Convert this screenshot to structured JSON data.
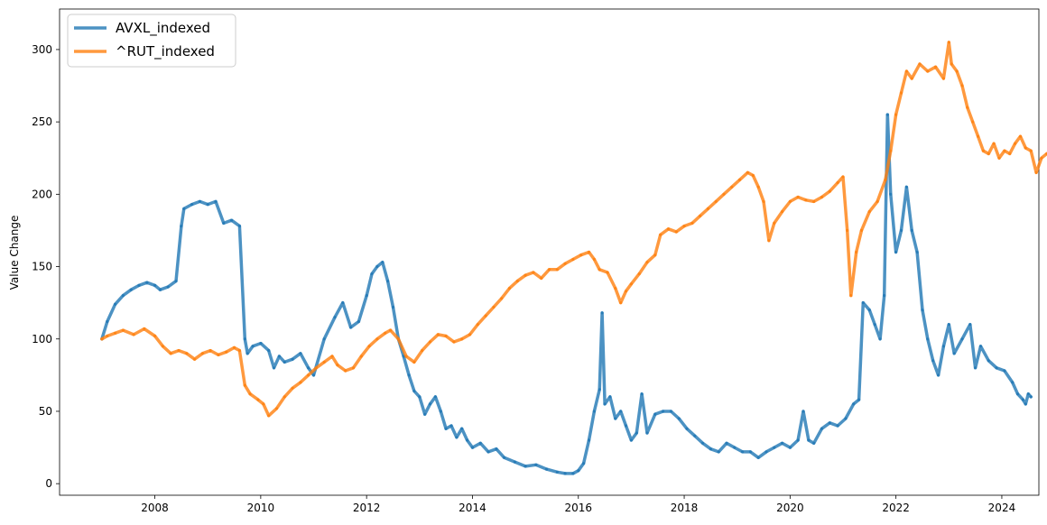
{
  "chart_data": {
    "type": "line",
    "title": "",
    "xlabel": "",
    "ylabel": "Value Change",
    "xlim": [
      2006.2,
      2024.7
    ],
    "ylim": [
      -8,
      328
    ],
    "xticks": [
      2008,
      2010,
      2012,
      2014,
      2016,
      2018,
      2020,
      2022,
      2024
    ],
    "yticks": [
      0,
      50,
      100,
      150,
      200,
      250,
      300
    ],
    "grid": false,
    "legend_position": "top-left",
    "series": [
      {
        "name": "AVXL_indexed",
        "color": "#1f77b4",
        "points": [
          [
            2007.0,
            100
          ],
          [
            2007.1,
            112
          ],
          [
            2007.25,
            124
          ],
          [
            2007.4,
            130
          ],
          [
            2007.55,
            134
          ],
          [
            2007.7,
            137
          ],
          [
            2007.85,
            139
          ],
          [
            2008.0,
            137
          ],
          [
            2008.1,
            134
          ],
          [
            2008.25,
            136
          ],
          [
            2008.4,
            140
          ],
          [
            2008.5,
            178
          ],
          [
            2008.55,
            190
          ],
          [
            2008.7,
            193
          ],
          [
            2008.85,
            195
          ],
          [
            2009.0,
            193
          ],
          [
            2009.15,
            195
          ],
          [
            2009.3,
            180
          ],
          [
            2009.45,
            182
          ],
          [
            2009.6,
            178
          ],
          [
            2009.7,
            100
          ],
          [
            2009.75,
            90
          ],
          [
            2009.85,
            95
          ],
          [
            2010.0,
            97
          ],
          [
            2010.15,
            92
          ],
          [
            2010.25,
            80
          ],
          [
            2010.35,
            88
          ],
          [
            2010.45,
            84
          ],
          [
            2010.6,
            86
          ],
          [
            2010.75,
            90
          ],
          [
            2010.9,
            80
          ],
          [
            2011.0,
            75
          ],
          [
            2011.2,
            100
          ],
          [
            2011.4,
            115
          ],
          [
            2011.55,
            125
          ],
          [
            2011.7,
            108
          ],
          [
            2011.85,
            112
          ],
          [
            2012.0,
            130
          ],
          [
            2012.1,
            145
          ],
          [
            2012.2,
            150
          ],
          [
            2012.3,
            153
          ],
          [
            2012.4,
            140
          ],
          [
            2012.5,
            122
          ],
          [
            2012.6,
            100
          ],
          [
            2012.7,
            88
          ],
          [
            2012.8,
            75
          ],
          [
            2012.9,
            64
          ],
          [
            2013.0,
            60
          ],
          [
            2013.1,
            48
          ],
          [
            2013.2,
            55
          ],
          [
            2013.3,
            60
          ],
          [
            2013.4,
            50
          ],
          [
            2013.5,
            38
          ],
          [
            2013.6,
            40
          ],
          [
            2013.7,
            32
          ],
          [
            2013.8,
            38
          ],
          [
            2013.9,
            30
          ],
          [
            2014.0,
            25
          ],
          [
            2014.15,
            28
          ],
          [
            2014.3,
            22
          ],
          [
            2014.45,
            24
          ],
          [
            2014.6,
            18
          ],
          [
            2014.8,
            15
          ],
          [
            2015.0,
            12
          ],
          [
            2015.2,
            13
          ],
          [
            2015.4,
            10
          ],
          [
            2015.6,
            8
          ],
          [
            2015.75,
            7
          ],
          [
            2015.9,
            7
          ],
          [
            2016.0,
            9
          ],
          [
            2016.1,
            14
          ],
          [
            2016.2,
            30
          ],
          [
            2016.3,
            50
          ],
          [
            2016.4,
            65
          ],
          [
            2016.45,
            118
          ],
          [
            2016.5,
            55
          ],
          [
            2016.6,
            60
          ],
          [
            2016.7,
            45
          ],
          [
            2016.8,
            50
          ],
          [
            2016.9,
            40
          ],
          [
            2017.0,
            30
          ],
          [
            2017.1,
            35
          ],
          [
            2017.2,
            62
          ],
          [
            2017.3,
            35
          ],
          [
            2017.45,
            48
          ],
          [
            2017.6,
            50
          ],
          [
            2017.75,
            50
          ],
          [
            2017.9,
            45
          ],
          [
            2018.05,
            38
          ],
          [
            2018.2,
            33
          ],
          [
            2018.35,
            28
          ],
          [
            2018.5,
            24
          ],
          [
            2018.65,
            22
          ],
          [
            2018.8,
            28
          ],
          [
            2018.95,
            25
          ],
          [
            2019.1,
            22
          ],
          [
            2019.25,
            22
          ],
          [
            2019.4,
            18
          ],
          [
            2019.55,
            22
          ],
          [
            2019.7,
            25
          ],
          [
            2019.85,
            28
          ],
          [
            2020.0,
            25
          ],
          [
            2020.15,
            30
          ],
          [
            2020.25,
            50
          ],
          [
            2020.35,
            30
          ],
          [
            2020.45,
            28
          ],
          [
            2020.6,
            38
          ],
          [
            2020.75,
            42
          ],
          [
            2020.9,
            40
          ],
          [
            2021.05,
            45
          ],
          [
            2021.2,
            55
          ],
          [
            2021.3,
            58
          ],
          [
            2021.38,
            125
          ],
          [
            2021.5,
            120
          ],
          [
            2021.6,
            110
          ],
          [
            2021.7,
            100
          ],
          [
            2021.78,
            130
          ],
          [
            2021.84,
            255
          ],
          [
            2021.9,
            200
          ],
          [
            2022.0,
            160
          ],
          [
            2022.1,
            175
          ],
          [
            2022.2,
            205
          ],
          [
            2022.3,
            175
          ],
          [
            2022.4,
            160
          ],
          [
            2022.5,
            120
          ],
          [
            2022.6,
            100
          ],
          [
            2022.7,
            85
          ],
          [
            2022.8,
            75
          ],
          [
            2022.9,
            95
          ],
          [
            2023.0,
            110
          ],
          [
            2023.1,
            90
          ],
          [
            2023.25,
            100
          ],
          [
            2023.4,
            110
          ],
          [
            2023.5,
            80
          ],
          [
            2023.6,
            95
          ],
          [
            2023.75,
            85
          ],
          [
            2023.9,
            80
          ],
          [
            2024.05,
            78
          ],
          [
            2024.2,
            70
          ],
          [
            2024.3,
            62
          ],
          [
            2024.4,
            58
          ],
          [
            2024.45,
            55
          ],
          [
            2024.5,
            62
          ],
          [
            2024.55,
            60
          ]
        ]
      },
      {
        "name": "^RUT_indexed",
        "color": "#ff7f0e",
        "points": [
          [
            2007.0,
            100
          ],
          [
            2007.1,
            102
          ],
          [
            2007.25,
            104
          ],
          [
            2007.4,
            106
          ],
          [
            2007.6,
            103
          ],
          [
            2007.8,
            107
          ],
          [
            2008.0,
            102
          ],
          [
            2008.15,
            95
          ],
          [
            2008.3,
            90
          ],
          [
            2008.45,
            92
          ],
          [
            2008.6,
            90
          ],
          [
            2008.75,
            86
          ],
          [
            2008.9,
            90
          ],
          [
            2009.05,
            92
          ],
          [
            2009.2,
            89
          ],
          [
            2009.35,
            91
          ],
          [
            2009.5,
            94
          ],
          [
            2009.6,
            92
          ],
          [
            2009.7,
            68
          ],
          [
            2009.8,
            62
          ],
          [
            2009.95,
            58
          ],
          [
            2010.05,
            55
          ],
          [
            2010.15,
            47
          ],
          [
            2010.3,
            52
          ],
          [
            2010.45,
            60
          ],
          [
            2010.6,
            66
          ],
          [
            2010.75,
            70
          ],
          [
            2010.9,
            75
          ],
          [
            2011.05,
            80
          ],
          [
            2011.2,
            84
          ],
          [
            2011.35,
            88
          ],
          [
            2011.45,
            82
          ],
          [
            2011.6,
            78
          ],
          [
            2011.75,
            80
          ],
          [
            2011.9,
            88
          ],
          [
            2012.05,
            95
          ],
          [
            2012.2,
            100
          ],
          [
            2012.35,
            104
          ],
          [
            2012.45,
            106
          ],
          [
            2012.6,
            100
          ],
          [
            2012.75,
            88
          ],
          [
            2012.9,
            84
          ],
          [
            2013.05,
            92
          ],
          [
            2013.2,
            98
          ],
          [
            2013.35,
            103
          ],
          [
            2013.5,
            102
          ],
          [
            2013.65,
            98
          ],
          [
            2013.8,
            100
          ],
          [
            2013.95,
            103
          ],
          [
            2014.1,
            110
          ],
          [
            2014.25,
            116
          ],
          [
            2014.4,
            122
          ],
          [
            2014.55,
            128
          ],
          [
            2014.7,
            135
          ],
          [
            2014.85,
            140
          ],
          [
            2015.0,
            144
          ],
          [
            2015.15,
            146
          ],
          [
            2015.3,
            142
          ],
          [
            2015.45,
            148
          ],
          [
            2015.6,
            148
          ],
          [
            2015.75,
            152
          ],
          [
            2015.9,
            155
          ],
          [
            2016.05,
            158
          ],
          [
            2016.2,
            160
          ],
          [
            2016.3,
            155
          ],
          [
            2016.4,
            148
          ],
          [
            2016.55,
            146
          ],
          [
            2016.7,
            135
          ],
          [
            2016.8,
            125
          ],
          [
            2016.9,
            133
          ],
          [
            2017.0,
            138
          ],
          [
            2017.15,
            145
          ],
          [
            2017.3,
            153
          ],
          [
            2017.45,
            158
          ],
          [
            2017.55,
            172
          ],
          [
            2017.7,
            176
          ],
          [
            2017.85,
            174
          ],
          [
            2018.0,
            178
          ],
          [
            2018.15,
            180
          ],
          [
            2018.3,
            185
          ],
          [
            2018.45,
            190
          ],
          [
            2018.6,
            195
          ],
          [
            2018.75,
            200
          ],
          [
            2018.9,
            205
          ],
          [
            2019.05,
            210
          ],
          [
            2019.2,
            215
          ],
          [
            2019.3,
            213
          ],
          [
            2019.4,
            205
          ],
          [
            2019.5,
            195
          ],
          [
            2019.6,
            168
          ],
          [
            2019.7,
            180
          ],
          [
            2019.85,
            188
          ],
          [
            2020.0,
            195
          ],
          [
            2020.15,
            198
          ],
          [
            2020.3,
            196
          ],
          [
            2020.45,
            195
          ],
          [
            2020.6,
            198
          ],
          [
            2020.75,
            202
          ],
          [
            2020.9,
            208
          ],
          [
            2021.0,
            212
          ],
          [
            2021.08,
            175
          ],
          [
            2021.15,
            130
          ],
          [
            2021.25,
            160
          ],
          [
            2021.35,
            175
          ],
          [
            2021.5,
            188
          ],
          [
            2021.65,
            195
          ],
          [
            2021.8,
            210
          ],
          [
            2021.9,
            230
          ],
          [
            2022.0,
            255
          ],
          [
            2022.1,
            270
          ],
          [
            2022.2,
            285
          ],
          [
            2022.3,
            280
          ],
          [
            2022.45,
            290
          ],
          [
            2022.6,
            285
          ],
          [
            2022.75,
            288
          ],
          [
            2022.9,
            280
          ],
          [
            2023.0,
            305
          ],
          [
            2023.05,
            290
          ],
          [
            2023.15,
            285
          ],
          [
            2023.25,
            275
          ],
          [
            2023.35,
            260
          ],
          [
            2023.45,
            250
          ],
          [
            2023.55,
            240
          ],
          [
            2023.65,
            230
          ],
          [
            2023.75,
            228
          ],
          [
            2023.85,
            235
          ],
          [
            2023.95,
            225
          ],
          [
            2024.05,
            230
          ],
          [
            2024.15,
            228
          ],
          [
            2024.25,
            235
          ],
          [
            2024.35,
            240
          ],
          [
            2024.45,
            232
          ],
          [
            2024.55,
            230
          ],
          [
            2024.65,
            215
          ],
          [
            2024.75,
            225
          ],
          [
            2024.85,
            228
          ]
        ]
      }
    ]
  }
}
